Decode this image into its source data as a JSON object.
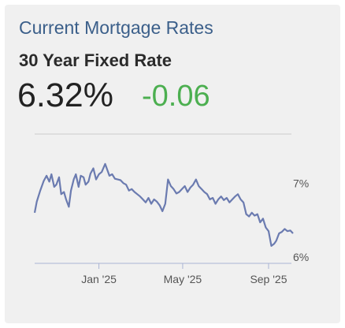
{
  "card": {
    "title": "Current Mortgage Rates",
    "subtitle": "30 Year Fixed Rate",
    "rate": "6.32%",
    "change": "-0.06"
  },
  "colors": {
    "title": "#3b5f8a",
    "line": "#6b7bb0",
    "change": "#4caf50",
    "background": "#f0f0f0"
  },
  "chart_data": {
    "type": "line",
    "title": "",
    "xlabel": "",
    "ylabel": "",
    "y_ticks": [
      {
        "value": 7,
        "label": "7%"
      },
      {
        "value": 6,
        "label": "6%"
      }
    ],
    "x_ticks": [
      {
        "date": "2025-01-01",
        "label": "Jan '25"
      },
      {
        "date": "2025-05-01",
        "label": "May '25"
      },
      {
        "date": "2025-09-01",
        "label": "Sep '25"
      }
    ],
    "xlim": [
      "2024-10-01",
      "2025-10-06"
    ],
    "ylim": [
      6.0,
      7.75
    ],
    "grid": false,
    "series": [
      {
        "name": "",
        "x": [
          "2024-10-01",
          "2024-10-04",
          "2024-10-09",
          "2024-10-14",
          "2024-10-18",
          "2024-10-22",
          "2024-10-25",
          "2024-10-29",
          "2024-11-01",
          "2024-11-05",
          "2024-11-08",
          "2024-11-12",
          "2024-11-15",
          "2024-11-19",
          "2024-11-22",
          "2024-11-26",
          "2024-11-29",
          "2024-12-03",
          "2024-12-06",
          "2024-12-10",
          "2024-12-13",
          "2024-12-17",
          "2024-12-20",
          "2024-12-24",
          "2024-12-28",
          "2025-01-01",
          "2025-01-05",
          "2025-01-10",
          "2025-01-13",
          "2025-01-16",
          "2025-01-20",
          "2025-01-24",
          "2025-01-28",
          "2025-02-01",
          "2025-02-05",
          "2025-02-09",
          "2025-02-13",
          "2025-02-17",
          "2025-02-21",
          "2025-02-25",
          "2025-03-01",
          "2025-03-05",
          "2025-03-09",
          "2025-03-13",
          "2025-03-17",
          "2025-03-21",
          "2025-03-25",
          "2025-03-29",
          "2025-04-02",
          "2025-04-06",
          "2025-04-10",
          "2025-04-14",
          "2025-04-18",
          "2025-04-22",
          "2025-04-26",
          "2025-04-30",
          "2025-05-04",
          "2025-05-08",
          "2025-05-12",
          "2025-05-16",
          "2025-05-20",
          "2025-05-24",
          "2025-05-28",
          "2025-06-01",
          "2025-06-05",
          "2025-06-09",
          "2025-06-13",
          "2025-06-17",
          "2025-06-21",
          "2025-06-25",
          "2025-06-29",
          "2025-07-03",
          "2025-07-07",
          "2025-07-11",
          "2025-07-15",
          "2025-07-19",
          "2025-07-23",
          "2025-07-27",
          "2025-07-31",
          "2025-08-04",
          "2025-08-08",
          "2025-08-12",
          "2025-08-16",
          "2025-08-20",
          "2025-08-24",
          "2025-08-28",
          "2025-09-01",
          "2025-09-05",
          "2025-09-09",
          "2025-09-12",
          "2025-09-16",
          "2025-09-20",
          "2025-09-24",
          "2025-09-28",
          "2025-10-02",
          "2025-10-06"
        ],
        "y": [
          6.6,
          6.75,
          6.9,
          7.03,
          7.1,
          7.02,
          7.12,
          6.95,
          6.98,
          7.08,
          6.85,
          6.88,
          6.78,
          6.68,
          6.9,
          7.05,
          7.12,
          6.95,
          7.1,
          7.08,
          6.98,
          7.02,
          7.13,
          7.2,
          7.05,
          7.12,
          7.15,
          7.26,
          7.18,
          7.1,
          7.12,
          7.06,
          7.05,
          7.04,
          7.0,
          6.98,
          6.9,
          6.92,
          6.88,
          6.85,
          6.82,
          6.78,
          6.74,
          6.8,
          6.72,
          6.78,
          6.75,
          6.7,
          6.62,
          6.72,
          7.05,
          6.96,
          6.92,
          6.86,
          6.88,
          6.92,
          6.96,
          6.88,
          6.94,
          6.98,
          7.05,
          6.96,
          6.92,
          6.88,
          6.85,
          6.78,
          6.8,
          6.72,
          6.78,
          6.82,
          6.77,
          6.8,
          6.74,
          6.78,
          6.82,
          6.85,
          6.78,
          6.74,
          6.58,
          6.55,
          6.6,
          6.56,
          6.58,
          6.47,
          6.52,
          6.4,
          6.35,
          6.15,
          6.18,
          6.22,
          6.32,
          6.34,
          6.38,
          6.35,
          6.36,
          6.32
        ]
      }
    ]
  }
}
